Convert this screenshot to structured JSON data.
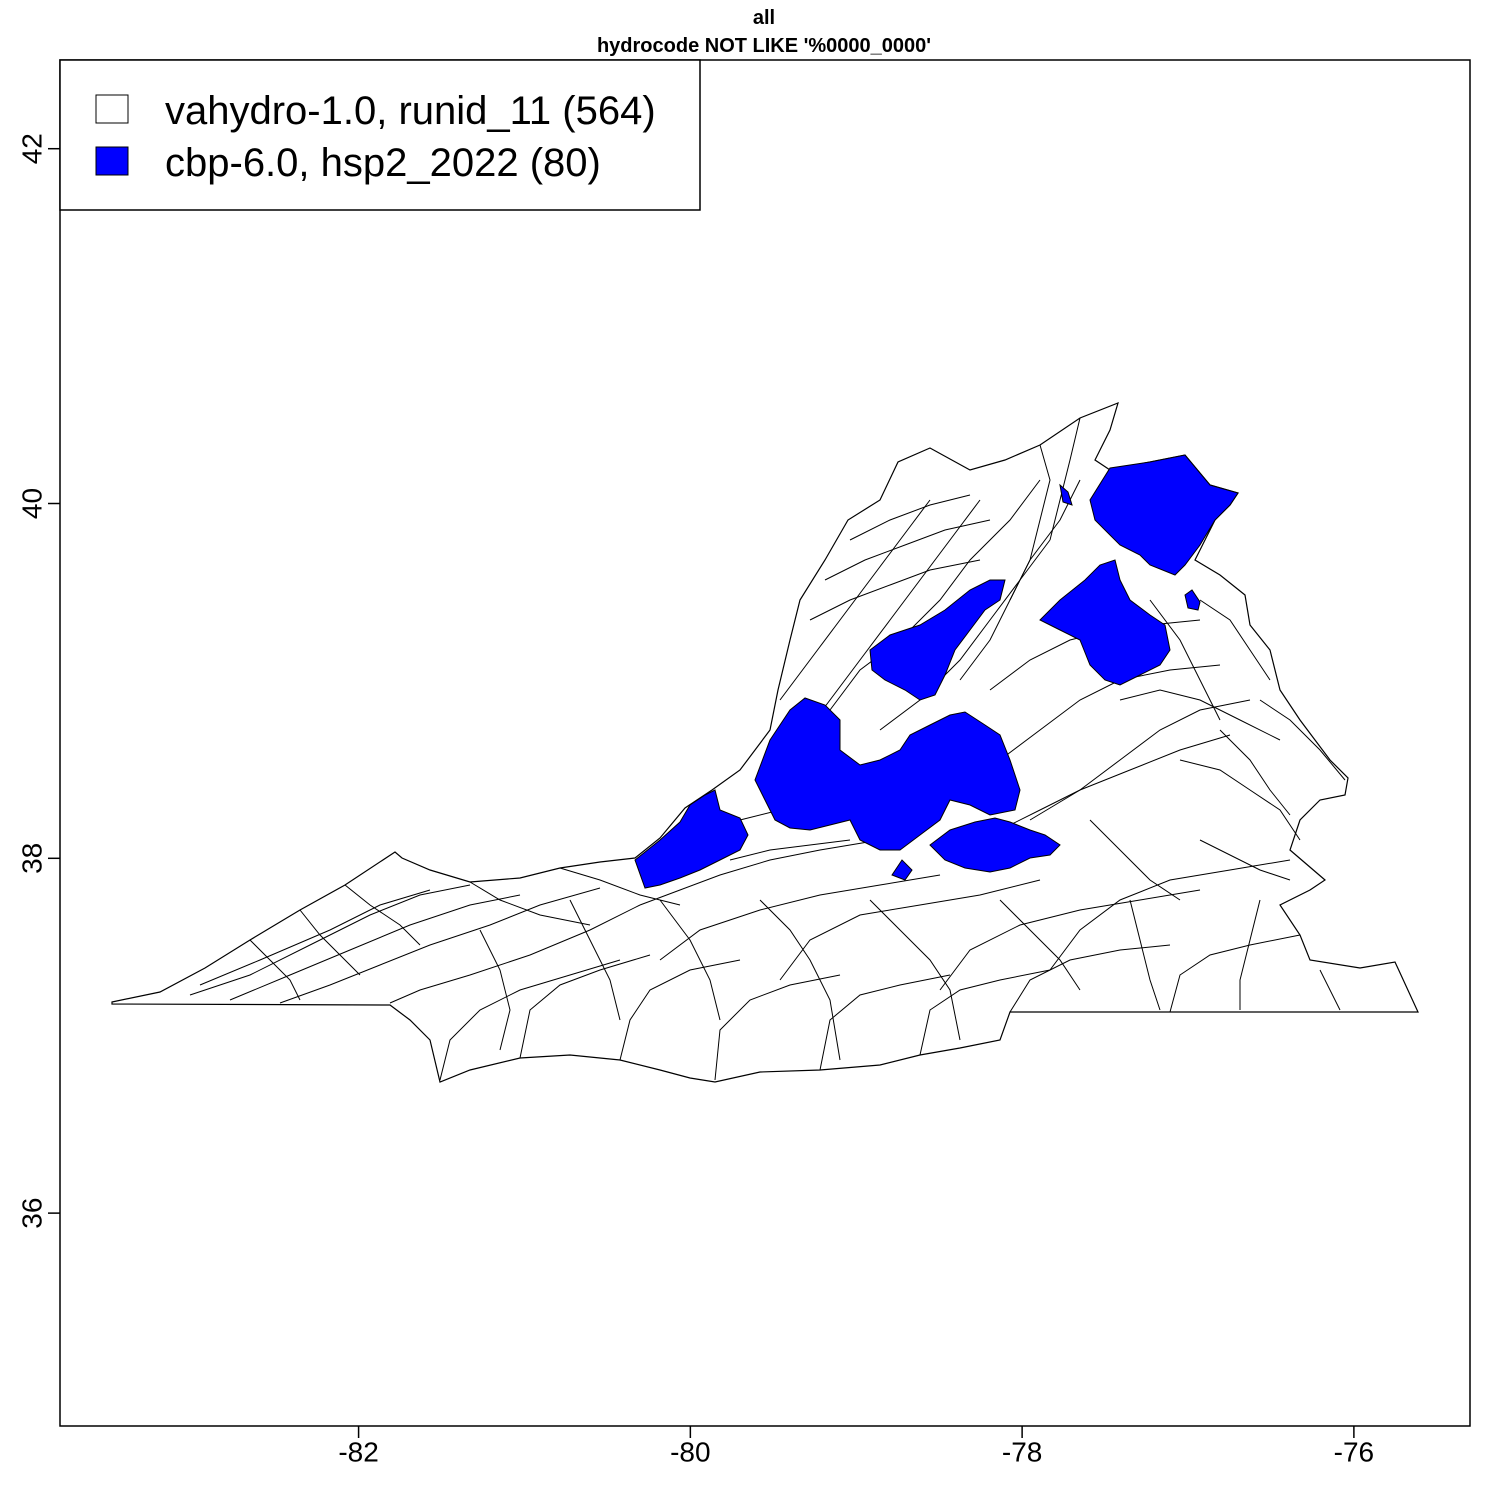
{
  "title": {
    "line1": "all",
    "line2": "hydrocode NOT LIKE '%0000_0000'"
  },
  "colors": {
    "highlight": "#0000ff",
    "base": "#ffffff",
    "stroke": "#000000"
  },
  "legend": {
    "position": "top-left",
    "items": [
      {
        "label": "vahydro-1.0, runid_11 (564)",
        "color": "#ffffff"
      },
      {
        "label": "cbp-6.0, hsp2_2022 (80)",
        "color": "#0000ff"
      }
    ]
  },
  "chart_data": {
    "type": "map",
    "x_ticks": [
      "-82",
      "-80",
      "-78",
      "-76"
    ],
    "y_ticks": [
      "36",
      "38",
      "40",
      "42"
    ],
    "xlim": [
      -83.8,
      -75.3
    ],
    "ylim": [
      34.8,
      42.5
    ],
    "series": [
      {
        "name": "vahydro-1.0, runid_11",
        "count": 564,
        "color": "#ffffff"
      },
      {
        "name": "cbp-6.0, hsp2_2022",
        "count": 80,
        "color": "#0000ff"
      }
    ]
  }
}
